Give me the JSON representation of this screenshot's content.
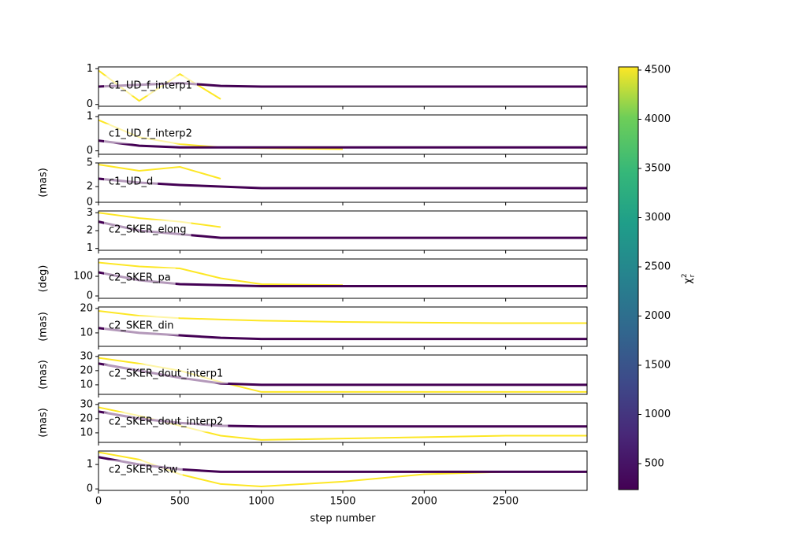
{
  "chart_data": {
    "type": "trace",
    "x": [
      0,
      250,
      500,
      750,
      1000,
      1500,
      2000,
      2500,
      3000
    ],
    "xlim": [
      0,
      3000
    ],
    "xticks": [
      0,
      500,
      1000,
      1500,
      2000,
      2500
    ],
    "xlabel": "step number",
    "colorbar": {
      "clim": [
        236,
        4532
      ],
      "ticks": [
        500,
        1000,
        1500,
        2000,
        2500,
        3000,
        3500,
        4000,
        4500
      ],
      "label": {
        "base": "χ",
        "sub": "r",
        "sup": "2"
      }
    },
    "panels": [
      {
        "label": "c1_UD_f_interp1",
        "ylim": [
          -0.05,
          1.05
        ],
        "yticks": [
          0,
          1
        ],
        "series": [
          {
            "color": "#fde725",
            "values": [
              0.95,
              0.1,
              0.85,
              0.15,
              null,
              null,
              null,
              null,
              null
            ]
          },
          {
            "color": "#440154",
            "values": [
              0.5,
              0.55,
              0.6,
              0.52,
              0.5,
              0.5,
              0.5,
              0.5,
              0.5
            ]
          }
        ]
      },
      {
        "label": "c1_UD_f_interp2",
        "ylim": [
          -0.1,
          1.05
        ],
        "yticks": [
          0,
          1
        ],
        "series": [
          {
            "color": "#fde725",
            "values": [
              0.9,
              0.4,
              0.2,
              0.1,
              0.08,
              0.05,
              null,
              null,
              null
            ]
          },
          {
            "color": "#440154",
            "values": [
              0.3,
              0.15,
              0.1,
              0.1,
              0.1,
              0.1,
              0.1,
              0.1,
              0.1
            ]
          }
        ]
      },
      {
        "label": "c1_UD_d",
        "ylabel": "(mas)",
        "ylim": [
          0,
          5
        ],
        "yticks": [
          0,
          2,
          5
        ],
        "series": [
          {
            "color": "#fde725",
            "values": [
              4.8,
              4,
              4.5,
              3,
              null,
              null,
              null,
              null,
              null
            ]
          },
          {
            "color": "#440154",
            "values": [
              3,
              2.5,
              2.2,
              2,
              1.8,
              1.8,
              1.8,
              1.8,
              1.8
            ]
          }
        ]
      },
      {
        "label": "c2_SKER_elong",
        "ylim": [
          0.9,
          3.1
        ],
        "yticks": [
          1,
          2,
          3
        ],
        "series": [
          {
            "color": "#fde725",
            "values": [
              3,
              2.7,
              2.5,
              2.2,
              null,
              null,
              null,
              null,
              null
            ]
          },
          {
            "color": "#440154",
            "values": [
              2.5,
              2,
              1.8,
              1.6,
              1.6,
              1.6,
              1.6,
              1.6,
              1.6
            ]
          }
        ]
      },
      {
        "label": "c2_SKER_pa",
        "ylabel": "(deg)",
        "ylim": [
          -12,
          188
        ],
        "yticks": [
          0,
          100
        ],
        "series": [
          {
            "color": "#fde725",
            "values": [
              170,
              150,
              140,
              90,
              60,
              55,
              null,
              null,
              null
            ]
          },
          {
            "color": "#440154",
            "values": [
              120,
              80,
              60,
              55,
              50,
              50,
              50,
              50,
              50
            ]
          }
        ]
      },
      {
        "label": "c2_SKER_din",
        "ylabel": "(mas)",
        "ylim": [
          4.5,
          20.6
        ],
        "yticks": [
          10,
          20
        ],
        "series": [
          {
            "color": "#fde725",
            "values": [
              19,
              17,
              16,
              15.5,
              15,
              14.5,
              14.2,
              14,
              14
            ]
          },
          {
            "color": "#440154",
            "values": [
              12,
              10,
              9,
              8,
              7.5,
              7.5,
              7.5,
              7.5,
              7.5
            ]
          }
        ]
      },
      {
        "label": "c2_SKER_dout_interp1",
        "ylabel": "(mas)",
        "ylim": [
          3.3,
          31
        ],
        "yticks": [
          10,
          20,
          30
        ],
        "series": [
          {
            "color": "#fde725",
            "values": [
              29,
              25,
              20,
              12,
              5,
              5,
              5,
              5,
              5
            ]
          },
          {
            "color": "#440154",
            "values": [
              25,
              20,
              15,
              11,
              10,
              10,
              10,
              10,
              10
            ]
          }
        ]
      },
      {
        "label": "c2_SKER_dout_interp2",
        "ylabel": "(mas)",
        "ylim": [
          3.3,
          31
        ],
        "yticks": [
          10,
          20,
          30
        ],
        "series": [
          {
            "color": "#fde725",
            "values": [
              28,
              22,
              15,
              8,
              5,
              6,
              7,
              8,
              8
            ]
          },
          {
            "color": "#440154",
            "values": [
              25,
              20,
              17,
              15,
              14.5,
              14.5,
              14.5,
              14.5,
              14.5
            ]
          }
        ]
      },
      {
        "label": "c2_SKER_skw",
        "ylim": [
          -0.06,
          1.55
        ],
        "yticks": [
          0,
          1
        ],
        "series": [
          {
            "color": "#fde725",
            "values": [
              1.5,
              1.2,
              0.6,
              0.2,
              0.1,
              0.3,
              0.6,
              0.7,
              0.7
            ]
          },
          {
            "color": "#440154",
            "values": [
              1.3,
              1,
              0.8,
              0.7,
              0.7,
              0.7,
              0.7,
              0.7,
              0.7
            ]
          }
        ]
      }
    ]
  }
}
